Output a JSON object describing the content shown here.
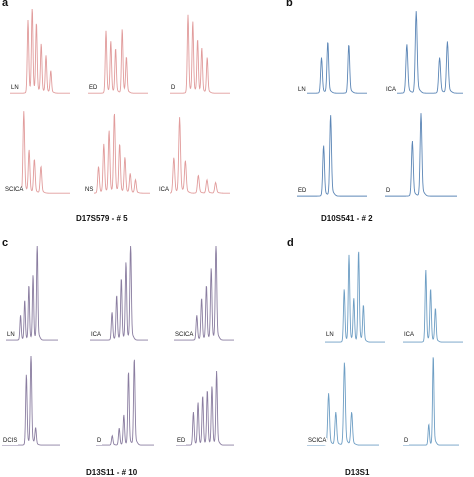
{
  "figure": {
    "panels": [
      {
        "id": "a",
        "letter": "a",
        "caption": "D17S579 - # 5",
        "color": "#e19c9c",
        "traces": [
          {
            "label": "LN",
            "peaks": [
              [
                0.3,
                0.82
              ],
              [
                0.37,
                0.96
              ],
              [
                0.44,
                0.78
              ],
              [
                0.52,
                0.55
              ],
              [
                0.6,
                0.42
              ],
              [
                0.68,
                0.25
              ]
            ]
          },
          {
            "label": "ED",
            "peaks": [
              [
                0.3,
                0.7
              ],
              [
                0.38,
                0.58
              ],
              [
                0.46,
                0.5
              ],
              [
                0.57,
                0.72
              ],
              [
                0.64,
                0.4
              ]
            ]
          },
          {
            "label": "D",
            "peaks": [
              [
                0.3,
                0.88
              ],
              [
                0.38,
                0.8
              ],
              [
                0.46,
                0.6
              ],
              [
                0.53,
                0.5
              ],
              [
                0.62,
                0.4
              ]
            ]
          },
          {
            "label": "SCICA",
            "peaks": [
              [
                0.3,
                0.92
              ],
              [
                0.38,
                0.48
              ],
              [
                0.46,
                0.38
              ],
              [
                0.56,
                0.3
              ]
            ]
          },
          {
            "label": "NS",
            "peaks": [
              [
                0.22,
                0.3
              ],
              [
                0.3,
                0.55
              ],
              [
                0.38,
                0.7
              ],
              [
                0.46,
                0.9
              ],
              [
                0.54,
                0.55
              ],
              [
                0.62,
                0.4
              ],
              [
                0.7,
                0.22
              ],
              [
                0.78,
                0.15
              ]
            ]
          },
          {
            "label": "ICA",
            "peaks": [
              [
                0.22,
                0.4
              ],
              [
                0.3,
                0.85
              ],
              [
                0.38,
                0.36
              ],
              [
                0.56,
                0.2
              ],
              [
                0.68,
                0.15
              ],
              [
                0.8,
                0.12
              ]
            ]
          }
        ]
      },
      {
        "id": "b",
        "letter": "b",
        "caption": "D10S541 - # 2",
        "color": "#5c86b6",
        "traces": [
          {
            "label": "LN",
            "peaks": [
              [
                0.35,
                0.4
              ],
              [
                0.44,
                0.58
              ],
              [
                0.74,
                0.55
              ]
            ]
          },
          {
            "label": "ICA",
            "peaks": [
              [
                0.28,
                0.55
              ],
              [
                0.4,
                0.92
              ],
              [
                0.7,
                0.4
              ],
              [
                0.8,
                0.58
              ]
            ]
          },
          {
            "label": "ED",
            "peaks": [
              [
                0.38,
                0.55
              ],
              [
                0.48,
                0.88
              ]
            ]
          },
          {
            "label": "D",
            "peaks": [
              [
                0.38,
                0.6
              ],
              [
                0.5,
                0.9
              ]
            ]
          }
        ]
      },
      {
        "id": "c",
        "letter": "c",
        "caption": "D13S11 - # 10",
        "color": "#8a7da0",
        "traces": [
          {
            "label": "LN",
            "peaks": [
              [
                0.28,
                0.25
              ],
              [
                0.36,
                0.4
              ],
              [
                0.44,
                0.55
              ],
              [
                0.52,
                0.65
              ],
              [
                0.6,
                0.98
              ]
            ]
          },
          {
            "label": "ICA",
            "peaks": [
              [
                0.38,
                0.28
              ],
              [
                0.46,
                0.45
              ],
              [
                0.54,
                0.62
              ],
              [
                0.62,
                0.78
              ],
              [
                0.7,
                0.98
              ]
            ]
          },
          {
            "label": "SCICA",
            "peaks": [
              [
                0.38,
                0.25
              ],
              [
                0.46,
                0.42
              ],
              [
                0.54,
                0.55
              ],
              [
                0.62,
                0.72
              ],
              [
                0.7,
                0.98
              ]
            ]
          },
          {
            "label": "DCIS",
            "peaks": [
              [
                0.42,
                0.75
              ],
              [
                0.5,
                0.98
              ],
              [
                0.58,
                0.18
              ]
            ]
          },
          {
            "label": "D",
            "peaks": [
              [
                0.28,
                0.1
              ],
              [
                0.4,
                0.18
              ],
              [
                0.48,
                0.32
              ],
              [
                0.56,
                0.78
              ],
              [
                0.66,
                0.92
              ]
            ]
          },
          {
            "label": "ED",
            "peaks": [
              [
                0.3,
                0.35
              ],
              [
                0.38,
                0.45
              ],
              [
                0.46,
                0.52
              ],
              [
                0.54,
                0.58
              ],
              [
                0.62,
                0.62
              ],
              [
                0.7,
                0.78
              ]
            ]
          }
        ]
      },
      {
        "id": "d",
        "letter": "d",
        "caption": "D13S1",
        "color": "#6e9ec4",
        "traces": [
          {
            "label": "LN",
            "peaks": [
              [
                0.32,
                0.55
              ],
              [
                0.4,
                0.9
              ],
              [
                0.48,
                0.45
              ],
              [
                0.56,
                0.95
              ],
              [
                0.64,
                0.38
              ]
            ]
          },
          {
            "label": "ICA",
            "peaks": [
              [
                0.38,
                0.75
              ],
              [
                0.46,
                0.55
              ],
              [
                0.54,
                0.35
              ]
            ]
          },
          {
            "label": "SCICA",
            "peaks": [
              [
                0.3,
                0.55
              ],
              [
                0.4,
                0.35
              ],
              [
                0.52,
                0.88
              ],
              [
                0.62,
                0.35
              ]
            ]
          },
          {
            "label": "D",
            "peaks": [
              [
                0.46,
                0.22
              ],
              [
                0.54,
                0.95
              ]
            ]
          }
        ]
      }
    ]
  }
}
